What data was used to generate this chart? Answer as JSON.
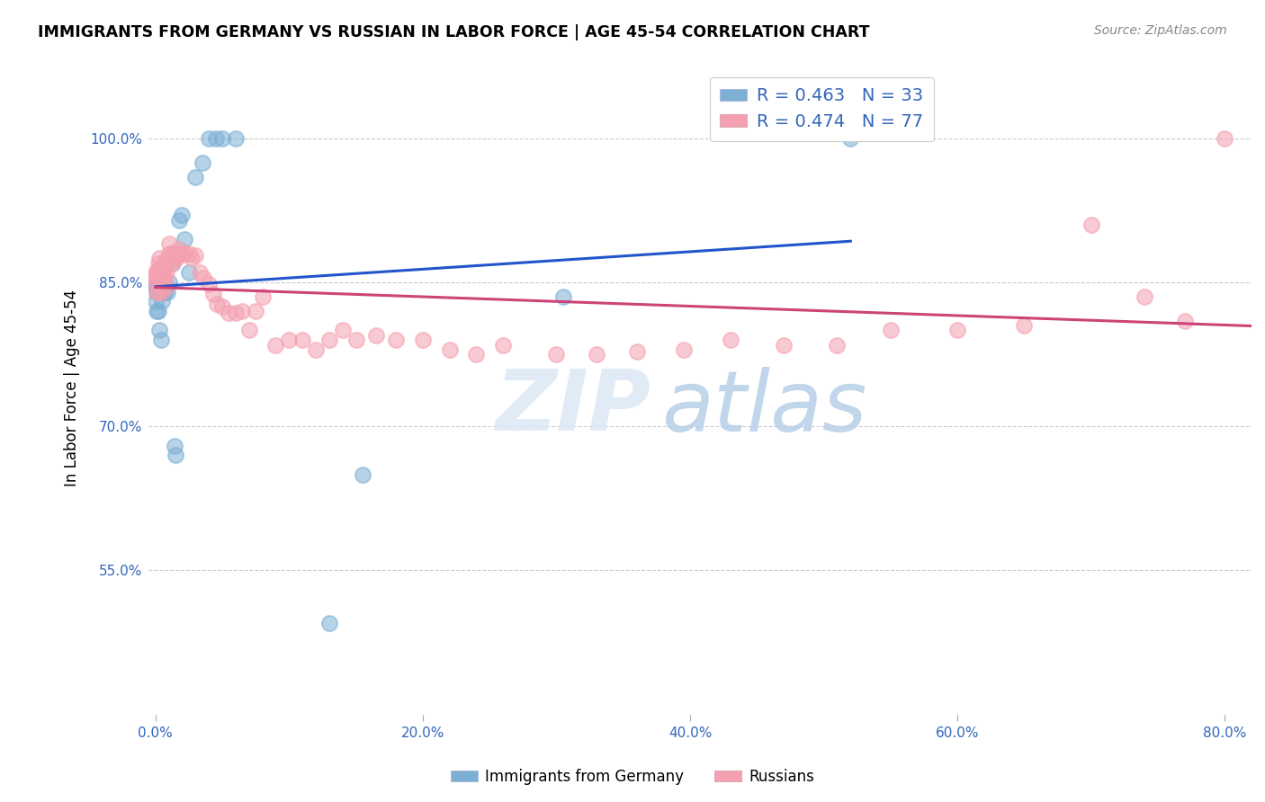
{
  "title": "IMMIGRANTS FROM GERMANY VS RUSSIAN IN LABOR FORCE | AGE 45-54 CORRELATION CHART",
  "source": "Source: ZipAtlas.com",
  "ylabel": "In Labor Force | Age 45-54",
  "xlim": [
    -0.005,
    0.82
  ],
  "ylim": [
    0.4,
    1.08
  ],
  "ytick_labels": [
    "55.0%",
    "70.0%",
    "85.0%",
    "100.0%"
  ],
  "ytick_values": [
    0.55,
    0.7,
    0.85,
    1.0
  ],
  "xtick_labels": [
    "0.0%",
    "20.0%",
    "40.0%",
    "60.0%",
    "80.0%"
  ],
  "xtick_values": [
    0.0,
    0.2,
    0.4,
    0.6,
    0.8
  ],
  "legend_label1": "Immigrants from Germany",
  "legend_label2": "Russians",
  "R_germany": 0.463,
  "N_germany": 33,
  "R_russian": 0.474,
  "N_russian": 77,
  "color_germany": "#7bafd4",
  "color_russian": "#f4a0b0",
  "color_trendline_germany": "#2255cc",
  "color_trendline_russian": "#cc4477",
  "watermark_zip": "ZIP",
  "watermark_atlas": "atlas",
  "germany_x": [
    0.0,
    0.0,
    0.0,
    0.001,
    0.001,
    0.002,
    0.002,
    0.003,
    0.004,
    0.005,
    0.005,
    0.006,
    0.007,
    0.008,
    0.009,
    0.01,
    0.012,
    0.014,
    0.015,
    0.018,
    0.02,
    0.022,
    0.025,
    0.03,
    0.035,
    0.04,
    0.045,
    0.05,
    0.06,
    0.13,
    0.155,
    0.305,
    0.52
  ],
  "germany_y": [
    0.845,
    0.85,
    0.83,
    0.84,
    0.82,
    0.82,
    0.84,
    0.8,
    0.79,
    0.84,
    0.83,
    0.84,
    0.84,
    0.845,
    0.84,
    0.85,
    0.87,
    0.68,
    0.67,
    0.915,
    0.92,
    0.895,
    0.86,
    0.96,
    0.975,
    1.0,
    1.0,
    1.0,
    1.0,
    0.495,
    0.65,
    0.835,
    1.0
  ],
  "russian_x": [
    0.0,
    0.0,
    0.001,
    0.001,
    0.001,
    0.002,
    0.002,
    0.002,
    0.003,
    0.003,
    0.003,
    0.004,
    0.004,
    0.005,
    0.005,
    0.005,
    0.006,
    0.006,
    0.007,
    0.007,
    0.008,
    0.008,
    0.009,
    0.01,
    0.01,
    0.011,
    0.012,
    0.013,
    0.014,
    0.015,
    0.016,
    0.017,
    0.018,
    0.02,
    0.022,
    0.025,
    0.027,
    0.03,
    0.033,
    0.036,
    0.04,
    0.043,
    0.046,
    0.05,
    0.055,
    0.06,
    0.065,
    0.07,
    0.075,
    0.08,
    0.09,
    0.1,
    0.11,
    0.12,
    0.13,
    0.14,
    0.15,
    0.165,
    0.18,
    0.2,
    0.22,
    0.24,
    0.26,
    0.3,
    0.33,
    0.36,
    0.395,
    0.43,
    0.47,
    0.51,
    0.55,
    0.6,
    0.65,
    0.7,
    0.74,
    0.77,
    0.8
  ],
  "russian_y": [
    0.86,
    0.855,
    0.84,
    0.85,
    0.86,
    0.84,
    0.855,
    0.87,
    0.855,
    0.865,
    0.875,
    0.845,
    0.86,
    0.84,
    0.855,
    0.865,
    0.855,
    0.87,
    0.855,
    0.865,
    0.845,
    0.86,
    0.875,
    0.88,
    0.89,
    0.875,
    0.88,
    0.87,
    0.875,
    0.88,
    0.875,
    0.88,
    0.885,
    0.88,
    0.88,
    0.88,
    0.875,
    0.878,
    0.86,
    0.855,
    0.848,
    0.838,
    0.828,
    0.825,
    0.818,
    0.818,
    0.82,
    0.8,
    0.82,
    0.835,
    0.785,
    0.79,
    0.79,
    0.78,
    0.79,
    0.8,
    0.79,
    0.795,
    0.79,
    0.79,
    0.78,
    0.775,
    0.785,
    0.775,
    0.775,
    0.778,
    0.78,
    0.79,
    0.785,
    0.785,
    0.8,
    0.8,
    0.805,
    0.91,
    0.835,
    0.81,
    1.0
  ]
}
